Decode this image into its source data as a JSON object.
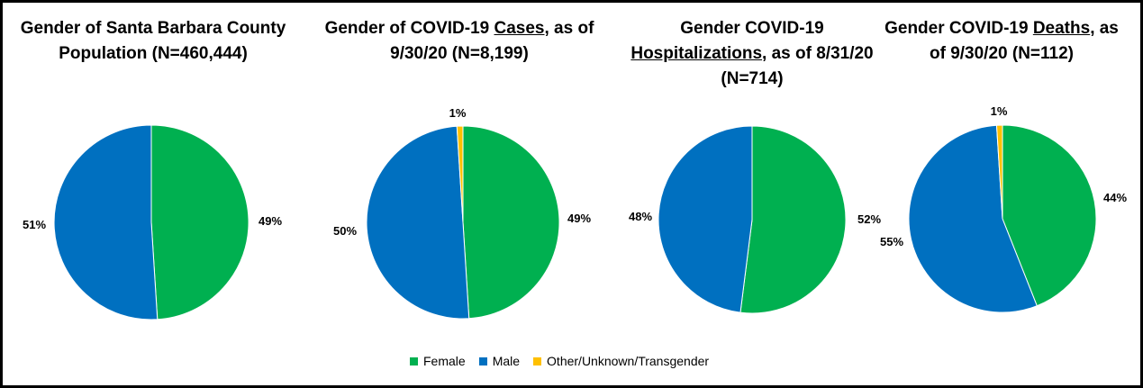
{
  "colors": {
    "female": "#00B050",
    "male": "#0070C0",
    "other": "#FFC000"
  },
  "chart_data": [
    {
      "type": "pie",
      "title": "Gender of Santa Barbara County Population (N=460,444)",
      "title_parts": {
        "line1": "Gender of Santa Barbara County",
        "line2": "Population (N=460,444)"
      },
      "slices": [
        {
          "name": "Female",
          "value": 49,
          "label": "49%"
        },
        {
          "name": "Male",
          "value": 51,
          "label": "51%"
        }
      ]
    },
    {
      "type": "pie",
      "title": "Gender of COVID-19 Cases, as of 9/30/20 (N=8,199)",
      "title_parts": {
        "line1_a": "Gender of COVID-19 ",
        "line1_u": "Cases",
        "line1_b": ", as of",
        "line2": "9/30/20 (N=8,199)"
      },
      "slices": [
        {
          "name": "Female",
          "value": 49,
          "label": "49%"
        },
        {
          "name": "Male",
          "value": 50,
          "label": "50%"
        },
        {
          "name": "Other/Unknown/Transgender",
          "value": 1,
          "label": "1%"
        }
      ]
    },
    {
      "type": "pie",
      "title": "Gender COVID-19 Hospitalizations, as of 8/31/20 (N=714)",
      "title_parts": {
        "line1": "Gender COVID-19",
        "line2_u": "Hospitalizations",
        "line2_b": ", as of 8/31/20",
        "line3": "(N=714)"
      },
      "slices": [
        {
          "name": "Female",
          "value": 52,
          "label": "52%"
        },
        {
          "name": "Male",
          "value": 48,
          "label": "48%"
        }
      ]
    },
    {
      "type": "pie",
      "title": "Gender COVID-19 Deaths, as of 9/30/20 (N=112)",
      "title_parts": {
        "line1_a": "Gender COVID-19 ",
        "line1_u": "Deaths",
        "line1_b": ", as",
        "line2": "of 9/30/20 (N=112)"
      },
      "slices": [
        {
          "name": "Female",
          "value": 44,
          "label": "44%"
        },
        {
          "name": "Male",
          "value": 55,
          "label": "55%"
        },
        {
          "name": "Other/Unknown/Transgender",
          "value": 1,
          "label": "1%"
        }
      ]
    }
  ],
  "legend": {
    "position": "bottom-center",
    "items": [
      {
        "key": "female",
        "label": "Female"
      },
      {
        "key": "male",
        "label": "Male"
      },
      {
        "key": "other",
        "label": "Other/Unknown/Transgender"
      }
    ]
  }
}
